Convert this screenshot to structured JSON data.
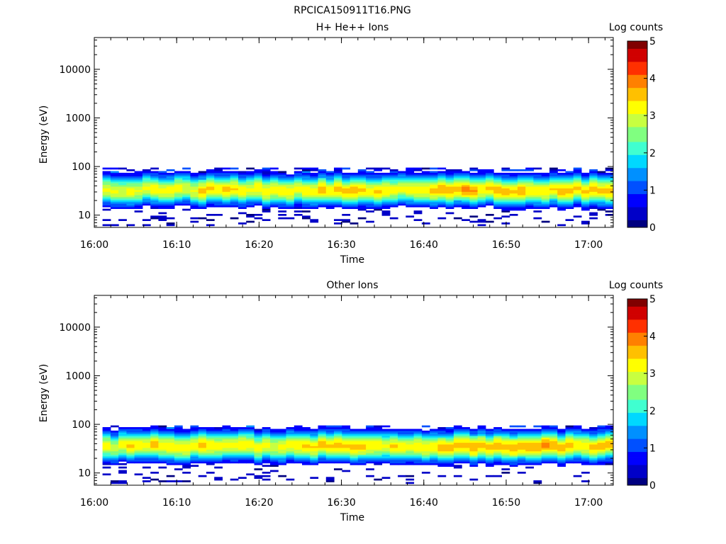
{
  "figure_title": "RPCICA150911T16.PNG",
  "colorscale": [
    "#000080",
    "#0000c8",
    "#0000ff",
    "#0050ff",
    "#0090ff",
    "#00d8ff",
    "#40ffd0",
    "#80ff80",
    "#c8ff40",
    "#ffff00",
    "#ffc000",
    "#ff8000",
    "#ff3000",
    "#d00000",
    "#800000"
  ],
  "chart_data": [
    {
      "type": "heatmap",
      "title": "H+ He++ Ions",
      "xlabel": "Time",
      "ylabel": "Energy (eV)",
      "colorbar_label": "Log counts",
      "colorbar_ticks": [
        "0",
        "1",
        "2",
        "3",
        "4",
        "5"
      ],
      "colorbar_range": [
        0,
        5
      ],
      "xlim": [
        "16:00",
        "17:03"
      ],
      "xticks": [
        "16:00",
        "16:10",
        "16:20",
        "16:30",
        "16:40",
        "16:50",
        "17:00"
      ],
      "ylim": [
        5.6,
        45000
      ],
      "yscale": "log",
      "yticks": [
        "10",
        "100",
        "1000",
        "10000"
      ],
      "profile": {
        "time_minutes": [
          0,
          3,
          6,
          9,
          12,
          15,
          18,
          21,
          24,
          27,
          30,
          33,
          36,
          39,
          42,
          45,
          48,
          51,
          54,
          57,
          60,
          63
        ],
        "peak_log_counts": [
          3.1,
          3.2,
          3.3,
          3.2,
          3.4,
          3.3,
          3.2,
          3.3,
          3.2,
          3.5,
          3.6,
          3.4,
          3.2,
          3.3,
          3.6,
          3.7,
          3.5,
          3.6,
          3.5,
          3.5,
          3.4,
          3.6
        ],
        "center_energy_eV": 32,
        "band_low_eV": 20,
        "band_high_eV": 95,
        "sparse_low_eV": 6,
        "seed": 7
      }
    },
    {
      "type": "heatmap",
      "title": "Other Ions",
      "xlabel": "Time",
      "ylabel": "Energy (eV)",
      "colorbar_label": "Log counts",
      "colorbar_ticks": [
        "0",
        "1",
        "2",
        "3",
        "4",
        "5"
      ],
      "colorbar_range": [
        0,
        5
      ],
      "xlim": [
        "16:00",
        "17:03"
      ],
      "xticks": [
        "16:00",
        "16:10",
        "16:20",
        "16:30",
        "16:40",
        "16:50",
        "17:00"
      ],
      "ylim": [
        5.6,
        45000
      ],
      "yscale": "log",
      "yticks": [
        "10",
        "100",
        "1000",
        "10000"
      ],
      "profile": {
        "time_minutes": [
          0,
          3,
          6,
          9,
          12,
          15,
          18,
          21,
          24,
          27,
          30,
          33,
          36,
          39,
          42,
          45,
          48,
          51,
          54,
          57,
          60,
          63
        ],
        "peak_log_counts": [
          3.1,
          3.3,
          3.4,
          3.2,
          3.4,
          3.3,
          3.2,
          3.2,
          3.3,
          3.5,
          3.6,
          3.4,
          3.3,
          3.3,
          3.5,
          3.6,
          3.5,
          3.6,
          3.7,
          3.5,
          3.4,
          3.6
        ],
        "center_energy_eV": 34,
        "band_low_eV": 20,
        "band_high_eV": 95,
        "sparse_low_eV": 6,
        "seed": 13
      }
    }
  ]
}
